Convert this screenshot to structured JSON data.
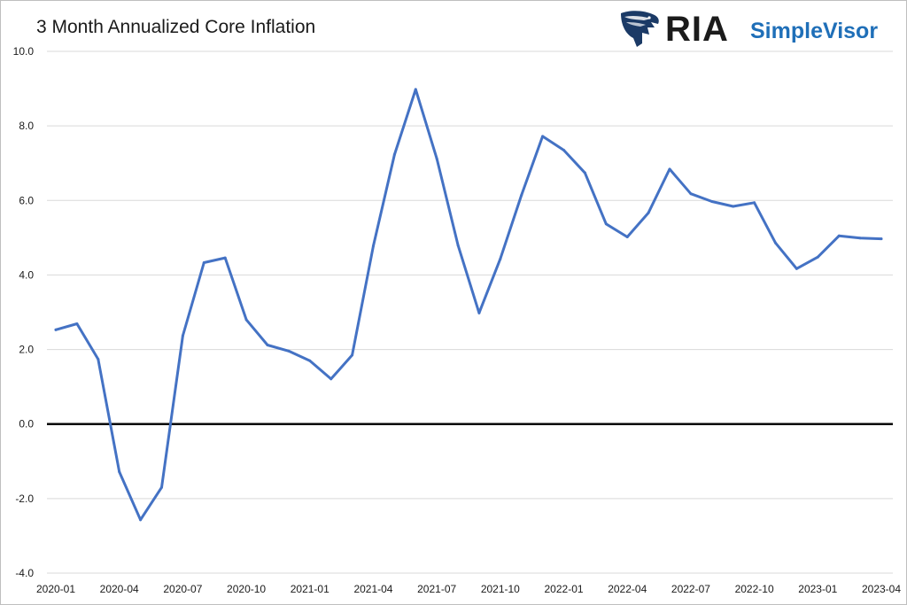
{
  "brand": {
    "name": "RIA",
    "product": "SimpleVisor",
    "primary_color": "#1b1b1b",
    "accent_color": "#1f6fb8",
    "icon": "eagle-icon"
  },
  "chart_data": {
    "type": "line",
    "title": "3 Month Annualized Core Inflation",
    "xlabel": "",
    "ylabel": "",
    "ylim": [
      -4.0,
      10.0
    ],
    "yticks": [
      "10.0",
      "8.0",
      "6.0",
      "4.0",
      "2.0",
      "0.0",
      "-2.0",
      "-4.0"
    ],
    "ytick_values": [
      10,
      8,
      6,
      4,
      2,
      0,
      -2,
      -4
    ],
    "grid": true,
    "zero_line": true,
    "line_color": "#4472c4",
    "xtick_labels": [
      "2020-01",
      "2020-04",
      "2020-07",
      "2020-10",
      "2021-01",
      "2021-04",
      "2021-07",
      "2021-10",
      "2022-01",
      "2022-04",
      "2022-07",
      "2022-10",
      "2023-01",
      "2023-04"
    ],
    "xtick_positions": [
      0,
      3,
      6,
      9,
      12,
      15,
      18,
      21,
      24,
      27,
      30,
      33,
      36,
      39
    ],
    "series": [
      {
        "name": "3 Month Annualized Core Inflation",
        "x": [
          "2020-01",
          "2020-02",
          "2020-03",
          "2020-04",
          "2020-05",
          "2020-06",
          "2020-07",
          "2020-08",
          "2020-09",
          "2020-10",
          "2020-11",
          "2020-12",
          "2021-01",
          "2021-02",
          "2021-03",
          "2021-04",
          "2021-05",
          "2021-06",
          "2021-07",
          "2021-08",
          "2021-09",
          "2021-10",
          "2021-11",
          "2021-12",
          "2022-01",
          "2022-02",
          "2022-03",
          "2022-04",
          "2022-05",
          "2022-06",
          "2022-07",
          "2022-08",
          "2022-09",
          "2022-10",
          "2022-11",
          "2022-12",
          "2023-01",
          "2023-02",
          "2023-03",
          "2023-04"
        ],
        "values": [
          2.53,
          2.69,
          1.74,
          -1.28,
          -2.57,
          -1.7,
          2.37,
          4.33,
          4.46,
          2.8,
          2.12,
          1.96,
          1.7,
          1.21,
          1.85,
          4.78,
          7.23,
          8.98,
          7.12,
          4.8,
          2.98,
          4.43,
          6.14,
          7.72,
          7.35,
          6.74,
          5.37,
          5.02,
          5.67,
          6.84,
          6.18,
          5.97,
          5.84,
          5.94,
          4.86,
          4.17,
          4.48,
          5.05,
          4.99,
          4.97
        ]
      }
    ]
  }
}
